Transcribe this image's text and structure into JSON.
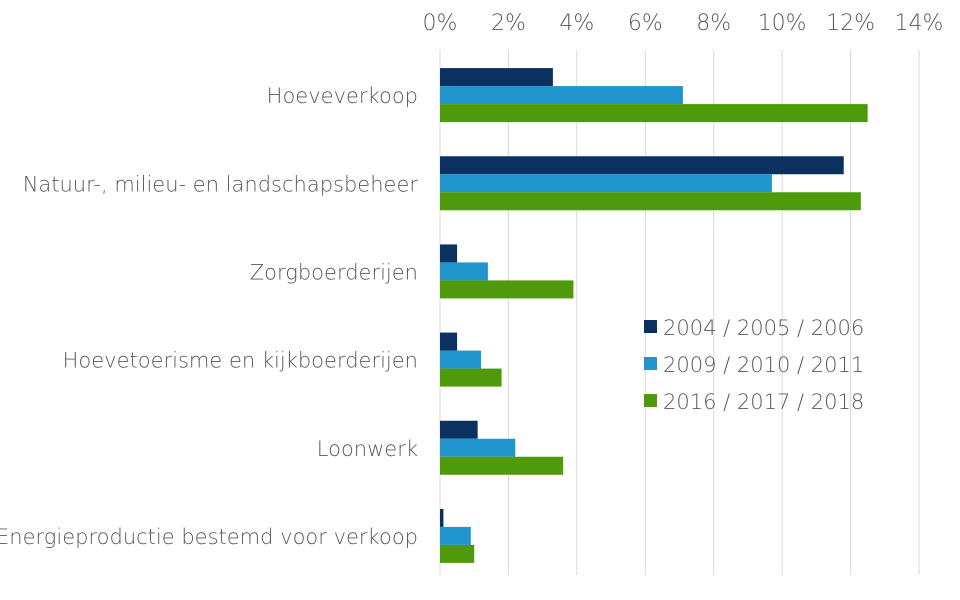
{
  "chart_data": {
    "type": "bar",
    "orientation": "horizontal",
    "title": "",
    "xlabel": "",
    "ylabel": "",
    "xlim": [
      0,
      14
    ],
    "x_ticks": [
      "0%",
      "2%",
      "4%",
      "6%",
      "8%",
      "10%",
      "12%",
      "14%"
    ],
    "tick_position": "top",
    "grid": true,
    "legend_position": "center-right",
    "categories": [
      "Hoeveverkoop",
      "Natuur-, milieu- en landschapsbeheer",
      "Zorgboerderijen",
      "Hoevetoerisme en kijkboerderijen",
      "Loonwerk",
      "Energieproductie bestemd voor verkoop"
    ],
    "series": [
      {
        "name": "2004 / 2005 / 2006",
        "color": "#0b3161",
        "values": [
          3.3,
          11.8,
          0.5,
          0.5,
          1.1,
          0.1
        ]
      },
      {
        "name": "2009 / 2010 / 2011",
        "color": "#2196cc",
        "values": [
          7.1,
          9.7,
          1.4,
          1.2,
          2.2,
          0.9
        ]
      },
      {
        "name": "2016 / 2017 / 2018",
        "color": "#4e9a0a",
        "values": [
          12.5,
          12.3,
          3.9,
          1.8,
          3.6,
          1.0
        ]
      }
    ]
  }
}
